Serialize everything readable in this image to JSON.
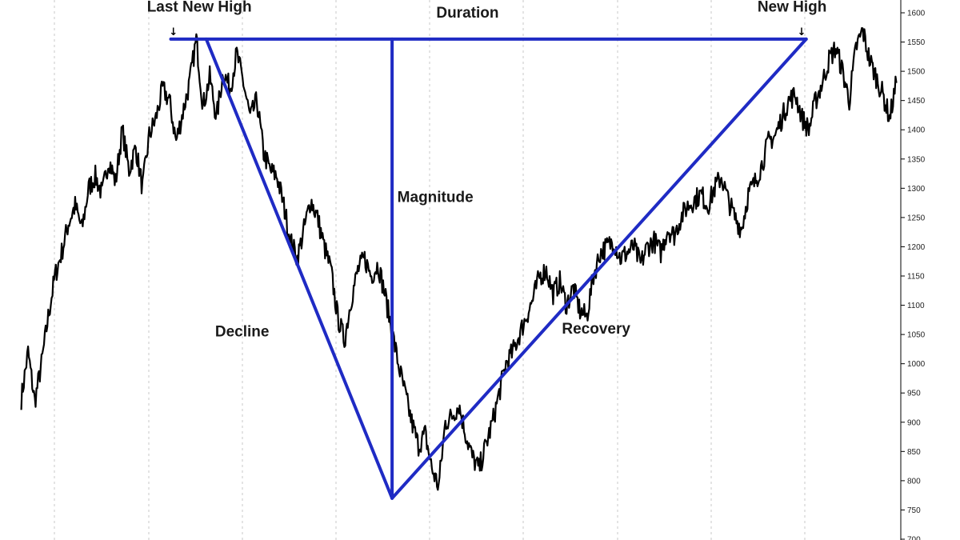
{
  "chart_data": {
    "type": "line",
    "title": "",
    "xlabel": "",
    "ylabel": "",
    "ylim": [
      700,
      1620
    ],
    "y_ticks": [
      700,
      750,
      800,
      850,
      900,
      950,
      1000,
      1050,
      1100,
      1150,
      1200,
      1250,
      1300,
      1350,
      1400,
      1450,
      1500,
      1550,
      1600
    ],
    "grid": "vertical dashed",
    "series": [
      {
        "values": [
          940,
          1020,
          935,
          1000,
          1080,
          1150,
          1190,
          1240,
          1270,
          1230,
          1300,
          1320,
          1290,
          1350,
          1310,
          1400,
          1330,
          1370,
          1300,
          1390,
          1420,
          1470,
          1450,
          1380,
          1430,
          1480,
          1555,
          1440,
          1490,
          1420,
          1500,
          1470,
          1530,
          1480,
          1420,
          1450,
          1360,
          1330,
          1320,
          1270,
          1210,
          1180,
          1230,
          1280,
          1250,
          1200,
          1160,
          1080,
          1040,
          1110,
          1160,
          1180,
          1150,
          1170,
          1120,
          1060,
          1000,
          950,
          900,
          860,
          880,
          820,
          790,
          900,
          910,
          930,
          880,
          840,
          820,
          860,
          900,
          950,
          1000,
          1020,
          1050,
          1080,
          1110,
          1150,
          1160,
          1120,
          1140,
          1100,
          1130,
          1090,
          1080,
          1150,
          1190,
          1200,
          1210,
          1180,
          1190,
          1200,
          1170,
          1200,
          1210,
          1190,
          1230,
          1220,
          1250,
          1270,
          1280,
          1290,
          1270,
          1300,
          1320,
          1280,
          1250,
          1230,
          1290,
          1310,
          1340,
          1380,
          1390,
          1420,
          1450,
          1460,
          1420,
          1400,
          1450,
          1480,
          1520,
          1540,
          1500,
          1450,
          1540,
          1570,
          1520,
          1490,
          1460,
          1420,
          1480
        ]
      }
    ],
    "overlay_lines": [
      {
        "from": [
          0.215,
          1555
        ],
        "to": [
          0.425,
          770
        ]
      },
      {
        "from": [
          0.425,
          770
        ],
        "to": [
          0.893,
          1555
        ]
      },
      {
        "from": [
          0.175,
          1555
        ],
        "to": [
          0.893,
          1555
        ]
      },
      {
        "from": [
          0.425,
          1555
        ],
        "to": [
          0.425,
          770
        ]
      }
    ],
    "annotations": [
      {
        "text": "Last New High",
        "x": 0.148,
        "y": 1610
      },
      {
        "text": "New High",
        "x": 0.838,
        "y": 1610
      },
      {
        "text": "Duration",
        "x": 0.475,
        "y": 1600
      },
      {
        "text": "Magnitude",
        "x": 0.431,
        "y": 1285
      },
      {
        "text": "Decline",
        "x": 0.225,
        "y": 1055
      },
      {
        "text": "Recovery",
        "x": 0.617,
        "y": 1060
      }
    ],
    "markers": [
      {
        "symbol": "↓",
        "x": 0.178,
        "y": 1562
      },
      {
        "symbol": "↓",
        "x": 0.888,
        "y": 1562
      }
    ]
  }
}
